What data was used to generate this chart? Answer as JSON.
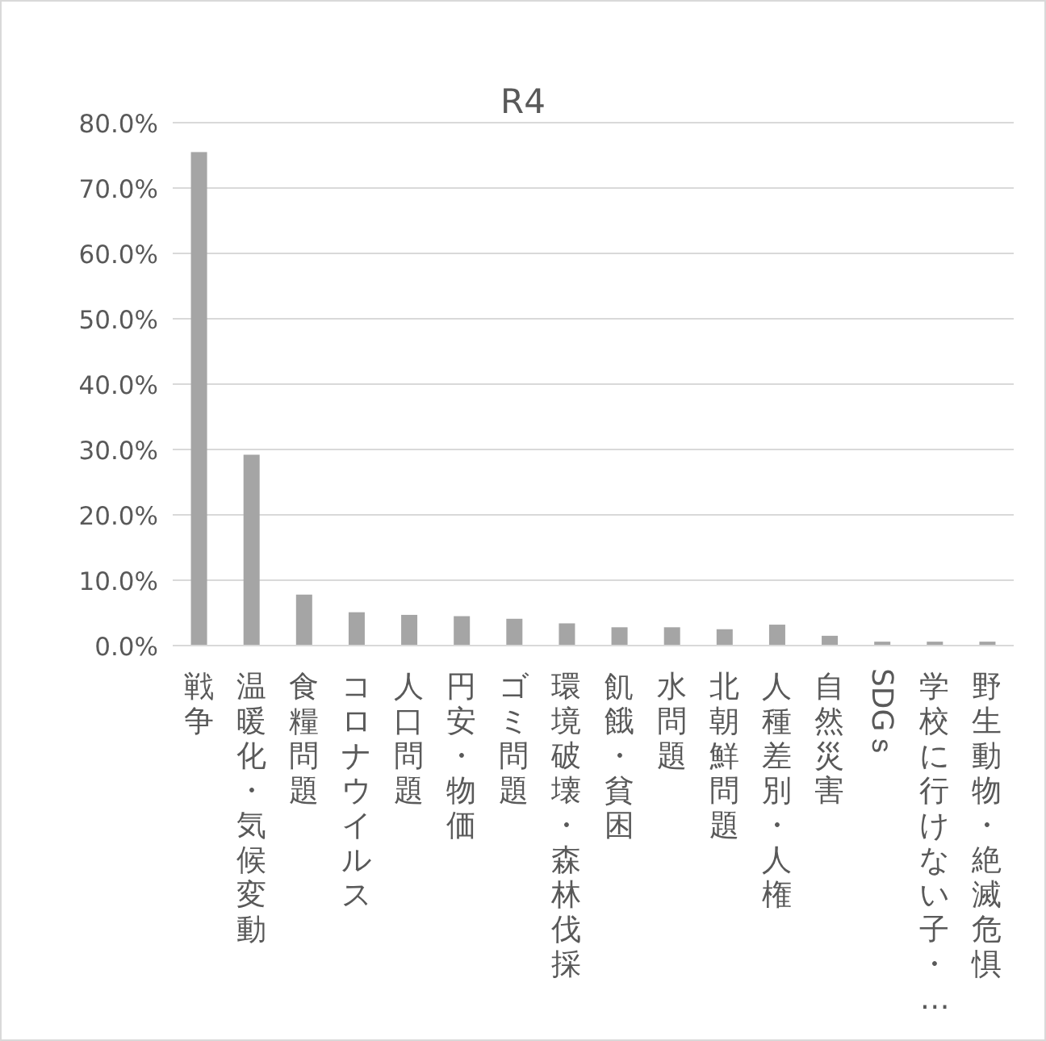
{
  "chart_data": {
    "type": "bar",
    "title": "R4",
    "categories": [
      "戦争",
      "温暖化・気候変動",
      "食糧問題",
      "コロナウイルス",
      "人口問題",
      "円安・物価",
      "ゴミ問題",
      "環境破壊・森林伐採",
      "飢餓・貧困",
      "水問題",
      "北朝鮮問題",
      "人種差別・人権",
      "自然災害",
      "SDGｓ",
      "学校に行けない子・…",
      "野生動物・絶滅危惧"
    ],
    "values": [
      75.5,
      29.2,
      7.8,
      5.1,
      4.7,
      4.5,
      4.1,
      3.4,
      2.8,
      2.8,
      2.5,
      3.2,
      1.5,
      0.6,
      0.6,
      0.6
    ],
    "color": "#a5a5a5",
    "ylim": [
      0,
      80
    ],
    "yticks": [
      {
        "value": 0,
        "label": "0.0%"
      },
      {
        "value": 10,
        "label": "10.0%"
      },
      {
        "value": 20,
        "label": "20.0%"
      },
      {
        "value": 30,
        "label": "30.0%"
      },
      {
        "value": 40,
        "label": "40.0%"
      },
      {
        "value": 50,
        "label": "50.0%"
      },
      {
        "value": 60,
        "label": "60.0%"
      },
      {
        "value": 70,
        "label": "70.0%"
      },
      {
        "value": 80,
        "label": "80.0%"
      }
    ],
    "grid": "y"
  }
}
